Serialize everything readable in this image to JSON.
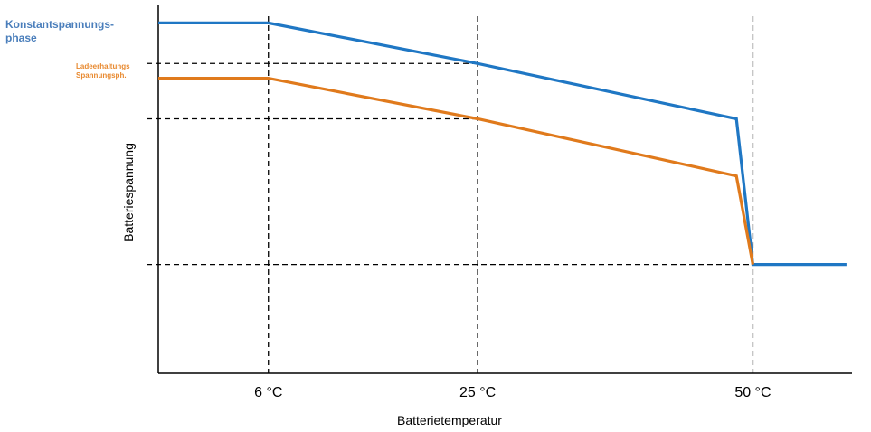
{
  "chart_data": {
    "type": "line",
    "title": "",
    "xlabel": "Batterietemperatur",
    "ylabel": "Batteriespannung",
    "x_ticks": [
      {
        "x": 6,
        "label": "6 °C"
      },
      {
        "x": 25,
        "label": "25 °C"
      },
      {
        "x": 50,
        "label": "50 °C"
      }
    ],
    "xlim": [
      -4,
      59
    ],
    "ylim": [
      0,
      100
    ],
    "grid": false,
    "legend": "none",
    "series": [
      {
        "name": "Konstantspannungs-phase",
        "color": "#1f77c4",
        "points": [
          [
            -4,
            95
          ],
          [
            6,
            95
          ],
          [
            25,
            84
          ],
          [
            48.5,
            69
          ],
          [
            50,
            29.5
          ],
          [
            58.5,
            29.5
          ]
        ]
      },
      {
        "name": "Ladeerhaltungs Spannungsph.",
        "color": "#e07a1c",
        "points": [
          [
            -4,
            80
          ],
          [
            6,
            80
          ],
          [
            25,
            69
          ],
          [
            48.5,
            53.5
          ],
          [
            50,
            29.5
          ]
        ]
      }
    ],
    "reference_lines": [
      {
        "orientation": "vertical",
        "x": 6
      },
      {
        "orientation": "vertical",
        "x": 25
      },
      {
        "orientation": "vertical",
        "x": 50
      },
      {
        "orientation": "horizontal",
        "y": 84,
        "x_to": 25
      },
      {
        "orientation": "horizontal",
        "y": 69,
        "x_to": 25
      },
      {
        "orientation": "horizontal",
        "y": 29.5,
        "x_to": 50
      }
    ]
  }
}
